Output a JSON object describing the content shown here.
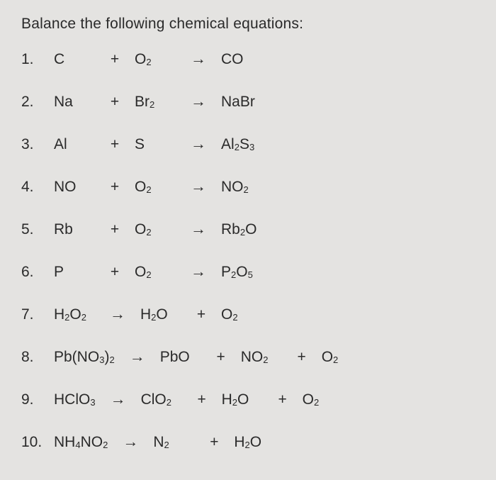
{
  "title": "Balance the following chemical equations:",
  "background_color": "#e4e3e1",
  "text_color": "#2a2a2a",
  "font_size_pt": 16,
  "arrow_glyph": "→",
  "plus_glyph": "+",
  "equations": [
    {
      "num": "1.",
      "tokens": [
        {
          "type": "formula",
          "parts": [
            {
              "t": "C"
            }
          ]
        },
        {
          "type": "plus"
        },
        {
          "type": "formula",
          "parts": [
            {
              "t": "O"
            },
            {
              "t": "2",
              "sub": true
            }
          ]
        },
        {
          "type": "arrow"
        },
        {
          "type": "formula",
          "parts": [
            {
              "t": "CO"
            }
          ]
        }
      ]
    },
    {
      "num": "2.",
      "tokens": [
        {
          "type": "formula",
          "parts": [
            {
              "t": "Na"
            }
          ]
        },
        {
          "type": "plus"
        },
        {
          "type": "formula",
          "parts": [
            {
              "t": "Br"
            },
            {
              "t": "2",
              "sub": true
            }
          ]
        },
        {
          "type": "arrow"
        },
        {
          "type": "formula",
          "parts": [
            {
              "t": "NaBr"
            }
          ]
        }
      ]
    },
    {
      "num": "3.",
      "tokens": [
        {
          "type": "formula",
          "parts": [
            {
              "t": "Al"
            }
          ]
        },
        {
          "type": "plus"
        },
        {
          "type": "formula",
          "parts": [
            {
              "t": "S"
            }
          ]
        },
        {
          "type": "arrow"
        },
        {
          "type": "formula",
          "parts": [
            {
              "t": "Al"
            },
            {
              "t": "2",
              "sub": true
            },
            {
              "t": "S"
            },
            {
              "t": "3",
              "sub": true
            }
          ]
        }
      ]
    },
    {
      "num": "4.",
      "tokens": [
        {
          "type": "formula",
          "parts": [
            {
              "t": "NO"
            }
          ]
        },
        {
          "type": "plus"
        },
        {
          "type": "formula",
          "parts": [
            {
              "t": "O"
            },
            {
              "t": "2",
              "sub": true
            }
          ]
        },
        {
          "type": "arrow"
        },
        {
          "type": "formula",
          "parts": [
            {
              "t": "NO"
            },
            {
              "t": "2",
              "sub": true
            }
          ]
        }
      ]
    },
    {
      "num": "5.",
      "tokens": [
        {
          "type": "formula",
          "parts": [
            {
              "t": "Rb"
            }
          ]
        },
        {
          "type": "plus"
        },
        {
          "type": "formula",
          "parts": [
            {
              "t": "O"
            },
            {
              "t": "2",
              "sub": true
            }
          ]
        },
        {
          "type": "arrow"
        },
        {
          "type": "formula",
          "parts": [
            {
              "t": "Rb"
            },
            {
              "t": "2",
              "sub": true
            },
            {
              "t": "O"
            }
          ]
        }
      ]
    },
    {
      "num": "6.",
      "tokens": [
        {
          "type": "formula",
          "parts": [
            {
              "t": "P"
            }
          ]
        },
        {
          "type": "plus"
        },
        {
          "type": "formula",
          "parts": [
            {
              "t": "O"
            },
            {
              "t": "2",
              "sub": true
            }
          ]
        },
        {
          "type": "arrow"
        },
        {
          "type": "formula",
          "parts": [
            {
              "t": "P"
            },
            {
              "t": "2",
              "sub": true
            },
            {
              "t": "O"
            },
            {
              "t": "5",
              "sub": true
            }
          ]
        }
      ]
    },
    {
      "num": "7.",
      "tokens": [
        {
          "type": "formula",
          "parts": [
            {
              "t": "H"
            },
            {
              "t": "2",
              "sub": true
            },
            {
              "t": "O"
            },
            {
              "t": "2",
              "sub": true
            }
          ]
        },
        {
          "type": "arrow"
        },
        {
          "type": "formula",
          "parts": [
            {
              "t": "H"
            },
            {
              "t": "2",
              "sub": true
            },
            {
              "t": "O"
            }
          ]
        },
        {
          "type": "plus"
        },
        {
          "type": "formula",
          "parts": [
            {
              "t": "O"
            },
            {
              "t": "2",
              "sub": true
            }
          ]
        }
      ]
    },
    {
      "num": "8.",
      "tokens": [
        {
          "type": "formula",
          "parts": [
            {
              "t": "Pb(NO"
            },
            {
              "t": "3",
              "sub": true
            },
            {
              "t": ")"
            },
            {
              "t": "2",
              "sub": true
            }
          ]
        },
        {
          "type": "arrow"
        },
        {
          "type": "formula",
          "parts": [
            {
              "t": "PbO"
            }
          ]
        },
        {
          "type": "plus"
        },
        {
          "type": "formula",
          "parts": [
            {
              "t": "NO"
            },
            {
              "t": "2",
              "sub": true
            }
          ]
        },
        {
          "type": "plus"
        },
        {
          "type": "formula",
          "parts": [
            {
              "t": "O"
            },
            {
              "t": "2",
              "sub": true
            }
          ]
        }
      ]
    },
    {
      "num": "9.",
      "tokens": [
        {
          "type": "formula",
          "parts": [
            {
              "t": "HClO"
            },
            {
              "t": "3",
              "sub": true
            }
          ]
        },
        {
          "type": "arrow"
        },
        {
          "type": "formula",
          "parts": [
            {
              "t": "ClO"
            },
            {
              "t": "2",
              "sub": true
            }
          ]
        },
        {
          "type": "plus"
        },
        {
          "type": "formula",
          "parts": [
            {
              "t": "H"
            },
            {
              "t": "2",
              "sub": true
            },
            {
              "t": "O"
            }
          ]
        },
        {
          "type": "plus"
        },
        {
          "type": "formula",
          "parts": [
            {
              "t": "O"
            },
            {
              "t": "2",
              "sub": true
            }
          ]
        }
      ]
    },
    {
      "num": "10.",
      "tokens": [
        {
          "type": "formula",
          "parts": [
            {
              "t": "NH"
            },
            {
              "t": "4",
              "sub": true
            },
            {
              "t": "NO"
            },
            {
              "t": "2",
              "sub": true
            }
          ]
        },
        {
          "type": "arrow"
        },
        {
          "type": "formula",
          "parts": [
            {
              "t": "N"
            },
            {
              "t": "2",
              "sub": true
            }
          ]
        },
        {
          "type": "plus"
        },
        {
          "type": "formula",
          "parts": [
            {
              "t": "H"
            },
            {
              "t": "2",
              "sub": true
            },
            {
              "t": "O"
            }
          ]
        }
      ]
    }
  ]
}
